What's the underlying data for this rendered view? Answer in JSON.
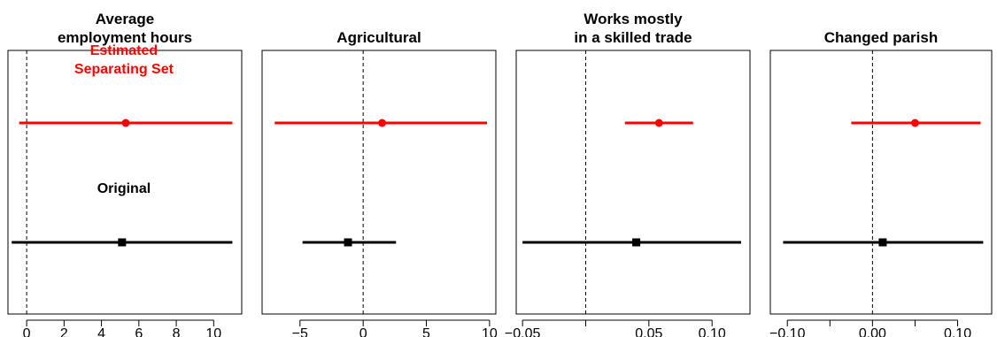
{
  "chart_data": [
    {
      "type": "forest",
      "title": [
        "Average",
        "employment hours"
      ],
      "xlim": [
        -1,
        11.5
      ],
      "xticks": [
        0,
        2,
        4,
        6,
        8,
        10
      ],
      "xtick_labels": [
        "0",
        "2",
        "4",
        "6",
        "8",
        "10"
      ],
      "minor_ticks": [],
      "reference_line": 0,
      "annotations": [
        {
          "lines": [
            "Estimated",
            "Separating Set"
          ],
          "color": "#ff0000",
          "x": 5.2,
          "y": 0.85
        },
        {
          "lines": [
            "Original"
          ],
          "color": "#000000",
          "x": 5.2,
          "y": 0.25
        }
      ],
      "series": [
        {
          "name": "Estimated Separating Set",
          "color": "#ff0000",
          "marker": "circle",
          "estimate": 5.3,
          "lower": -0.4,
          "upper": 11.0,
          "y": 0.6
        },
        {
          "name": "Original",
          "color": "#000000",
          "marker": "square",
          "estimate": 5.1,
          "lower": -0.8,
          "upper": 11.0,
          "y": 0.0
        }
      ]
    },
    {
      "type": "forest",
      "title": [
        "Agricultural"
      ],
      "xlim": [
        -8,
        10.5
      ],
      "xticks": [
        -5,
        0,
        5,
        10
      ],
      "xtick_labels": [
        "−5",
        "0",
        "5",
        "10"
      ],
      "minor_ticks": [],
      "reference_line": 0,
      "annotations": [],
      "series": [
        {
          "name": "Estimated Separating Set",
          "color": "#ff0000",
          "marker": "circle",
          "estimate": 1.5,
          "lower": -7.0,
          "upper": 9.8,
          "y": 0.6
        },
        {
          "name": "Original",
          "color": "#000000",
          "marker": "square",
          "estimate": -1.2,
          "lower": -4.8,
          "upper": 2.6,
          "y": 0.0
        }
      ]
    },
    {
      "type": "forest",
      "title": [
        "Works mostly",
        "in a skilled trade"
      ],
      "xlim": [
        -0.055,
        0.13
      ],
      "xticks": [
        -0.05,
        0.05,
        0.1
      ],
      "xtick_labels": [
        "−0.05",
        "0.05",
        "0.10"
      ],
      "minor_ticks": [
        0.0
      ],
      "reference_line": 0,
      "annotations": [],
      "series": [
        {
          "name": "Estimated Separating Set",
          "color": "#ff0000",
          "marker": "circle",
          "estimate": 0.058,
          "lower": 0.031,
          "upper": 0.085,
          "y": 0.6
        },
        {
          "name": "Original",
          "color": "#000000",
          "marker": "square",
          "estimate": 0.04,
          "lower": -0.05,
          "upper": 0.123,
          "y": 0.0
        }
      ]
    },
    {
      "type": "forest",
      "title": [
        "Changed parish"
      ],
      "xlim": [
        -0.12,
        0.14
      ],
      "xticks": [
        -0.1,
        0.0,
        0.1
      ],
      "xtick_labels": [
        "−0.10",
        "0.00",
        "0.10"
      ],
      "minor_ticks": [
        -0.05,
        0.05
      ],
      "reference_line": 0,
      "annotations": [],
      "series": [
        {
          "name": "Estimated Separating Set",
          "color": "#ff0000",
          "marker": "circle",
          "estimate": 0.05,
          "lower": -0.025,
          "upper": 0.127,
          "y": 0.6
        },
        {
          "name": "Original",
          "color": "#000000",
          "marker": "square",
          "estimate": 0.012,
          "lower": -0.105,
          "upper": 0.13,
          "y": 0.0
        }
      ]
    }
  ]
}
